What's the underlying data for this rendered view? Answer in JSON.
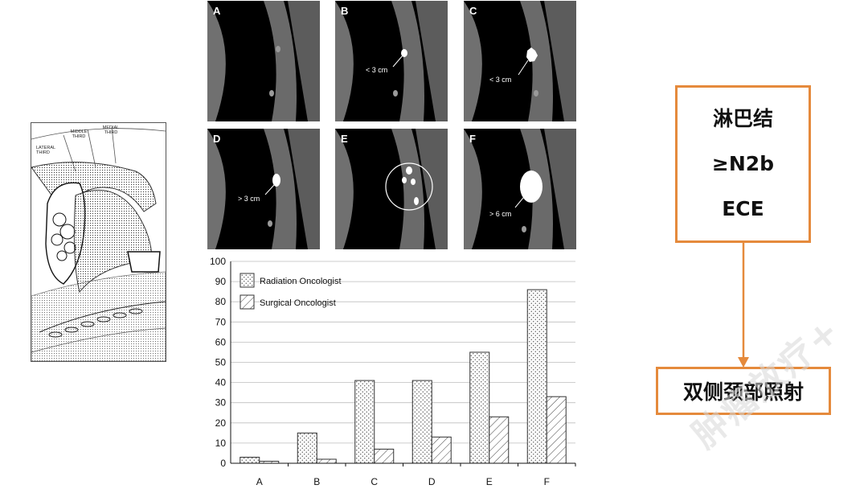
{
  "panels": [
    {
      "letter": "A",
      "label": ""
    },
    {
      "letter": "B",
      "label": "< 3 cm"
    },
    {
      "letter": "C",
      "label": "< 3 cm"
    },
    {
      "letter": "D",
      "label": "> 3 cm"
    },
    {
      "letter": "E",
      "label": ""
    },
    {
      "letter": "F",
      "label": "> 6 cm"
    }
  ],
  "illustration": {
    "labels": [
      "LATERAL THIRD",
      "MIDDLE THIRD",
      "MEDIAL THIRD"
    ]
  },
  "flow": {
    "box_lines": [
      "淋巴结",
      "≥N2b",
      "ECE"
    ],
    "result": "双侧颈部照射",
    "accent_color": "#e58a3c"
  },
  "watermark": "肿瘤放疗+",
  "chart_data": {
    "type": "bar",
    "categories": [
      "A",
      "B",
      "C",
      "D",
      "E",
      "F"
    ],
    "series": [
      {
        "name": "Radiation Oncologist",
        "values": [
          3,
          15,
          41,
          41,
          55,
          86
        ],
        "pattern": "dots"
      },
      {
        "name": "Surgical Oncologist",
        "values": [
          1,
          2,
          7,
          13,
          23,
          33
        ],
        "pattern": "hatch"
      }
    ],
    "yticks": [
      0,
      10,
      20,
      30,
      40,
      50,
      60,
      70,
      80,
      90,
      100
    ],
    "ylim": [
      0,
      100
    ],
    "title": "",
    "xlabel": "",
    "ylabel": "",
    "grid": true,
    "legend_position": "top-left"
  }
}
